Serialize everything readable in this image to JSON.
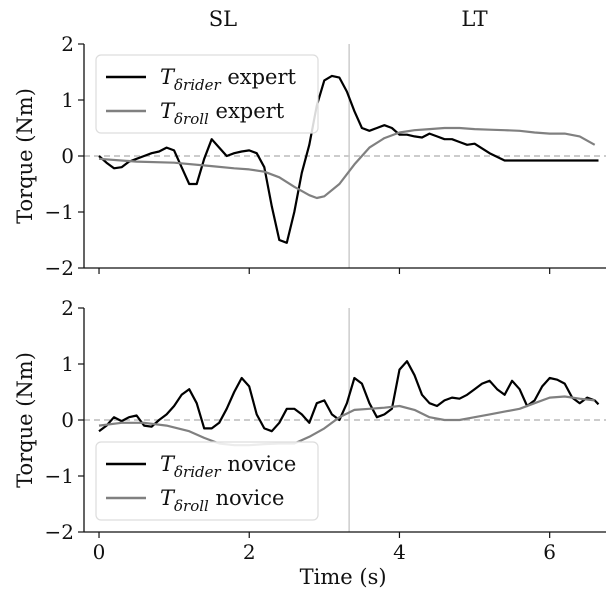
{
  "chart_data": [
    {
      "type": "line",
      "panel": "top",
      "ylabel": "Torque (Nm)",
      "xlabel": "",
      "xlim": [
        -0.2,
        6.75
      ],
      "ylim": [
        -2,
        2
      ],
      "xticks": [
        0,
        2,
        4,
        6
      ],
      "yticks": [
        -2,
        -1,
        0,
        1,
        2
      ],
      "tick_labels_x": [],
      "tick_labels_y": [
        "−2",
        "−1",
        "0",
        "1",
        "2"
      ],
      "phase_labels": [
        {
          "text": "SL",
          "x": 1.65
        },
        {
          "text": "LT",
          "x": 5.0
        }
      ],
      "phase_boundary_x": 3.33,
      "zero_line": true,
      "grid": false,
      "legend": "top-left",
      "series": [
        {
          "name": "T_δrider expert",
          "legend_main": "T",
          "legend_sub": "δrider",
          "legend_rest": " expert",
          "color": "#000000",
          "x": [
            0,
            0.1,
            0.2,
            0.3,
            0.4,
            0.5,
            0.6,
            0.7,
            0.8,
            0.9,
            1.0,
            1.1,
            1.2,
            1.3,
            1.4,
            1.5,
            1.6,
            1.7,
            1.8,
            1.9,
            2.0,
            2.1,
            2.2,
            2.3,
            2.4,
            2.5,
            2.6,
            2.7,
            2.8,
            2.9,
            3.0,
            3.1,
            3.2,
            3.3,
            3.4,
            3.5,
            3.6,
            3.7,
            3.8,
            3.9,
            4.0,
            4.1,
            4.2,
            4.3,
            4.4,
            4.5,
            4.6,
            4.7,
            4.8,
            4.9,
            5.0,
            5.2,
            5.4,
            5.6,
            5.8,
            6.0,
            6.2,
            6.4,
            6.6,
            6.65
          ],
          "y": [
            0,
            -0.12,
            -0.22,
            -0.2,
            -0.1,
            -0.05,
            0.0,
            0.05,
            0.08,
            0.15,
            0.1,
            -0.2,
            -0.5,
            -0.5,
            -0.05,
            0.3,
            0.15,
            0.0,
            0.05,
            0.08,
            0.1,
            0.05,
            -0.2,
            -0.9,
            -1.5,
            -1.55,
            -1.0,
            -0.3,
            0.2,
            0.9,
            1.35,
            1.43,
            1.4,
            1.15,
            0.8,
            0.5,
            0.45,
            0.5,
            0.55,
            0.5,
            0.38,
            0.38,
            0.35,
            0.33,
            0.4,
            0.35,
            0.3,
            0.3,
            0.25,
            0.2,
            0.22,
            0.05,
            -0.08,
            -0.08,
            -0.08,
            -0.08,
            -0.08,
            -0.08,
            -0.08,
            -0.08
          ]
        },
        {
          "name": "T_δroll expert",
          "legend_main": "T",
          "legend_sub": "δroll",
          "legend_rest": " expert",
          "color": "#808080",
          "x": [
            0,
            0.5,
            1.0,
            1.5,
            1.8,
            2.0,
            2.2,
            2.4,
            2.6,
            2.8,
            2.9,
            3.0,
            3.2,
            3.4,
            3.6,
            3.8,
            4.0,
            4.2,
            4.4,
            4.6,
            4.8,
            5.0,
            5.2,
            5.4,
            5.6,
            5.8,
            6.0,
            6.2,
            6.4,
            6.6
          ],
          "y": [
            -0.05,
            -0.1,
            -0.12,
            -0.18,
            -0.22,
            -0.24,
            -0.28,
            -0.38,
            -0.55,
            -0.7,
            -0.75,
            -0.72,
            -0.5,
            -0.15,
            0.15,
            0.32,
            0.42,
            0.46,
            0.48,
            0.5,
            0.5,
            0.48,
            0.47,
            0.46,
            0.45,
            0.42,
            0.4,
            0.4,
            0.35,
            0.2
          ]
        }
      ]
    },
    {
      "type": "line",
      "panel": "bottom",
      "ylabel": "Torque (Nm)",
      "xlabel": "Time (s)",
      "xlim": [
        -0.2,
        6.75
      ],
      "ylim": [
        -2,
        2
      ],
      "xticks": [
        0,
        2,
        4,
        6
      ],
      "yticks": [
        -2,
        -1,
        0,
        1,
        2
      ],
      "tick_labels_x": [
        "0",
        "2",
        "4",
        "6"
      ],
      "tick_labels_y": [
        "−2",
        "−1",
        "0",
        "1",
        "2"
      ],
      "phase_boundary_x": 3.33,
      "zero_line": true,
      "grid": false,
      "legend": "bottom-left",
      "series": [
        {
          "name": "T_δrider novice",
          "legend_main": "T",
          "legend_sub": "δrider",
          "legend_rest": " novice",
          "color": "#000000",
          "x": [
            0,
            0.1,
            0.2,
            0.3,
            0.4,
            0.5,
            0.6,
            0.7,
            0.8,
            0.9,
            1.0,
            1.1,
            1.2,
            1.3,
            1.4,
            1.5,
            1.6,
            1.7,
            1.8,
            1.9,
            2.0,
            2.1,
            2.2,
            2.3,
            2.4,
            2.5,
            2.6,
            2.7,
            2.8,
            2.9,
            3.0,
            3.1,
            3.2,
            3.3,
            3.4,
            3.5,
            3.6,
            3.7,
            3.8,
            3.9,
            4.0,
            4.1,
            4.2,
            4.3,
            4.4,
            4.5,
            4.6,
            4.7,
            4.8,
            4.9,
            5.0,
            5.1,
            5.2,
            5.3,
            5.4,
            5.5,
            5.6,
            5.7,
            5.8,
            5.9,
            6.0,
            6.1,
            6.2,
            6.3,
            6.4,
            6.5,
            6.6,
            6.65
          ],
          "y": [
            -0.2,
            -0.1,
            0.05,
            -0.02,
            0.05,
            0.08,
            -0.1,
            -0.12,
            0.0,
            0.1,
            0.25,
            0.45,
            0.55,
            0.3,
            -0.15,
            -0.15,
            -0.05,
            0.2,
            0.5,
            0.75,
            0.6,
            0.1,
            -0.15,
            -0.2,
            -0.05,
            0.2,
            0.2,
            0.1,
            -0.05,
            0.3,
            0.35,
            0.1,
            0.0,
            0.3,
            0.75,
            0.65,
            0.3,
            0.05,
            0.1,
            0.2,
            0.9,
            1.05,
            0.8,
            0.45,
            0.3,
            0.25,
            0.35,
            0.4,
            0.38,
            0.45,
            0.55,
            0.65,
            0.7,
            0.55,
            0.45,
            0.7,
            0.55,
            0.25,
            0.35,
            0.6,
            0.75,
            0.72,
            0.65,
            0.4,
            0.3,
            0.4,
            0.35,
            0.28
          ]
        },
        {
          "name": "T_δroll novice",
          "legend_main": "T",
          "legend_sub": "δroll",
          "legend_rest": " novice",
          "color": "#808080",
          "x": [
            0,
            0.3,
            0.6,
            0.9,
            1.2,
            1.4,
            1.6,
            1.8,
            2.0,
            2.2,
            2.4,
            2.6,
            2.8,
            3.0,
            3.2,
            3.4,
            3.6,
            3.8,
            4.0,
            4.2,
            4.4,
            4.6,
            4.8,
            5.0,
            5.2,
            5.4,
            5.6,
            5.8,
            6.0,
            6.2,
            6.4,
            6.6
          ],
          "y": [
            -0.1,
            -0.05,
            -0.05,
            -0.1,
            -0.2,
            -0.32,
            -0.42,
            -0.45,
            -0.45,
            -0.43,
            -0.42,
            -0.42,
            -0.3,
            -0.15,
            0.05,
            0.18,
            0.2,
            0.22,
            0.25,
            0.18,
            0.05,
            0.0,
            0.0,
            0.05,
            0.1,
            0.15,
            0.2,
            0.3,
            0.4,
            0.42,
            0.38,
            0.35
          ]
        }
      ]
    }
  ]
}
